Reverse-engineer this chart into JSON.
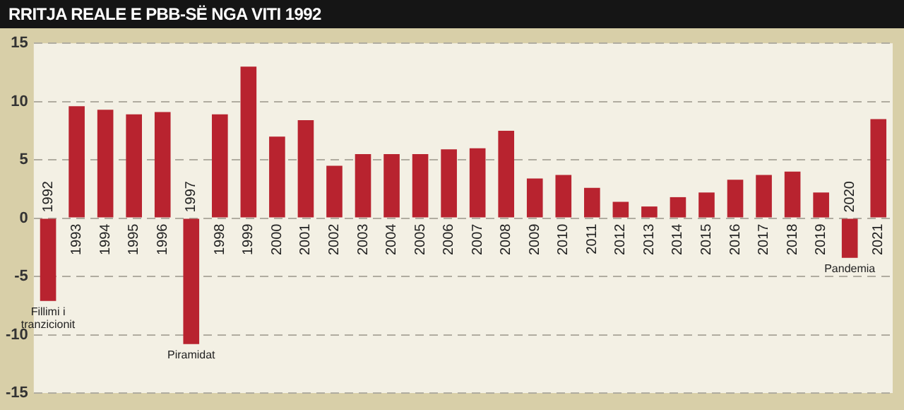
{
  "chart_data": {
    "type": "bar",
    "title": "RRITJA REALE E PBB-SË NGA VITI 1992",
    "categories": [
      "1992",
      "1993",
      "1994",
      "1995",
      "1996",
      "1997",
      "1998",
      "1999",
      "2000",
      "2001",
      "2002",
      "2003",
      "2004",
      "2005",
      "2006",
      "2007",
      "2008",
      "2009",
      "2010",
      "2011",
      "2012",
      "2013",
      "2014",
      "2015",
      "2016",
      "2017",
      "2018",
      "2019",
      "2020",
      "2021"
    ],
    "values": [
      -7.1,
      9.6,
      9.3,
      8.9,
      9.1,
      -10.8,
      8.9,
      13.0,
      7.0,
      8.4,
      4.5,
      5.5,
      5.5,
      5.5,
      5.9,
      6.0,
      7.5,
      3.4,
      3.7,
      2.6,
      1.4,
      1.0,
      1.8,
      2.2,
      3.3,
      3.7,
      4.0,
      2.2,
      -3.4,
      8.5
    ],
    "color": "#b8232f",
    "ylim": [
      -15,
      15
    ],
    "yticks": [
      -15,
      -10,
      -5,
      0,
      5,
      10,
      15
    ],
    "grid": "y",
    "annotations": [
      {
        "text": "Fillimi i tranzicionit",
        "x": "1992",
        "y": -7.1
      },
      {
        "text": "Piramidat",
        "x": "1997",
        "y": -10.8
      },
      {
        "text": "Pandemia",
        "x": "2020",
        "y": -3.4
      }
    ]
  }
}
